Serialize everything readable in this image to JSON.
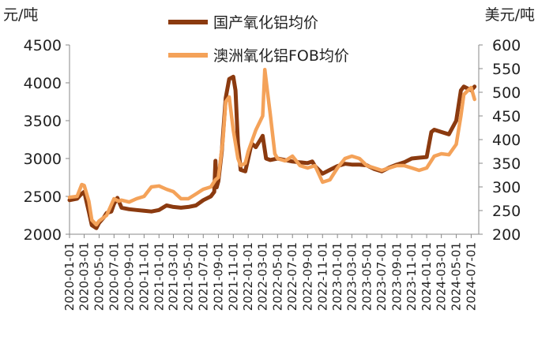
{
  "chart_data": {
    "type": "line",
    "title": "",
    "legend_placement": "top-center",
    "grid": false,
    "left_axis": {
      "unit_label": "元/吨",
      "ylim": [
        2000,
        4500
      ],
      "ticks": [
        "4500",
        "4000",
        "3500",
        "3000",
        "2500",
        "2000"
      ]
    },
    "right_axis": {
      "unit_label": "美元/吨",
      "ylim": [
        200,
        600
      ],
      "ticks": [
        "600",
        "550",
        "500",
        "450",
        "400",
        "350",
        "300",
        "250",
        "200"
      ]
    },
    "x_ticks": [
      "2020-01-01",
      "2020-03-01",
      "2020-05-01",
      "2020-07-01",
      "2020-09-01",
      "2020-11-01",
      "2021-01-01",
      "2021-03-01",
      "2021-05-01",
      "2021-07-01",
      "2021-09-01",
      "2021-11-01",
      "2022-01-01",
      "2022-03-01",
      "2022-05-01",
      "2022-07-01",
      "2022-09-01",
      "2022-11-01",
      "2023-01-01",
      "2023-03-01",
      "2023-05-01",
      "2023-07-01",
      "2023-09-01",
      "2023-11-01",
      "2024-01-01",
      "2024-03-01",
      "2024-05-01",
      "2024-07-01"
    ],
    "series": [
      {
        "name": "国产氧化铝均价",
        "axis": "left",
        "color": "#8B3A0F",
        "points": [
          [
            "2020-01-01",
            2450
          ],
          [
            "2020-02-01",
            2470
          ],
          [
            "2020-02-15",
            2520
          ],
          [
            "2020-03-01",
            2560
          ],
          [
            "2020-03-20",
            2300
          ],
          [
            "2020-04-01",
            2120
          ],
          [
            "2020-04-20",
            2080
          ],
          [
            "2020-05-01",
            2150
          ],
          [
            "2020-05-20",
            2220
          ],
          [
            "2020-06-01",
            2280
          ],
          [
            "2020-06-20",
            2300
          ],
          [
            "2020-07-01",
            2400
          ],
          [
            "2020-07-15",
            2480
          ],
          [
            "2020-08-01",
            2350
          ],
          [
            "2020-09-01",
            2330
          ],
          [
            "2020-10-01",
            2320
          ],
          [
            "2020-11-01",
            2310
          ],
          [
            "2020-12-01",
            2300
          ],
          [
            "2021-01-01",
            2320
          ],
          [
            "2021-02-01",
            2380
          ],
          [
            "2021-03-01",
            2360
          ],
          [
            "2021-04-01",
            2350
          ],
          [
            "2021-05-01",
            2360
          ],
          [
            "2021-06-01",
            2380
          ],
          [
            "2021-07-01",
            2450
          ],
          [
            "2021-08-01",
            2500
          ],
          [
            "2021-08-15",
            2560
          ],
          [
            "2021-08-20",
            2970
          ],
          [
            "2021-08-25",
            2620
          ],
          [
            "2021-09-01",
            2700
          ],
          [
            "2021-09-15",
            3100
          ],
          [
            "2021-10-01",
            3800
          ],
          [
            "2021-10-15",
            4050
          ],
          [
            "2021-11-01",
            4080
          ],
          [
            "2021-11-10",
            3900
          ],
          [
            "2021-11-20",
            3200
          ],
          [
            "2021-12-01",
            2850
          ],
          [
            "2021-12-20",
            2830
          ],
          [
            "2022-01-01",
            3000
          ],
          [
            "2022-01-15",
            3200
          ],
          [
            "2022-02-01",
            3150
          ],
          [
            "2022-02-20",
            3250
          ],
          [
            "2022-03-01",
            3300
          ],
          [
            "2022-03-15",
            3000
          ],
          [
            "2022-04-01",
            2980
          ],
          [
            "2022-05-01",
            3000
          ],
          [
            "2022-06-01",
            2980
          ],
          [
            "2022-07-01",
            2960
          ],
          [
            "2022-08-01",
            2950
          ],
          [
            "2022-09-01",
            2940
          ],
          [
            "2022-09-20",
            2960
          ],
          [
            "2022-10-01",
            2900
          ],
          [
            "2022-11-01",
            2800
          ],
          [
            "2022-12-01",
            2850
          ],
          [
            "2023-01-01",
            2900
          ],
          [
            "2023-02-01",
            2930
          ],
          [
            "2023-03-01",
            2920
          ],
          [
            "2023-04-01",
            2920
          ],
          [
            "2023-05-01",
            2910
          ],
          [
            "2023-06-01",
            2860
          ],
          [
            "2023-07-01",
            2830
          ],
          [
            "2023-08-01",
            2880
          ],
          [
            "2023-09-01",
            2920
          ],
          [
            "2023-10-01",
            2950
          ],
          [
            "2023-11-01",
            3000
          ],
          [
            "2023-12-01",
            3010
          ],
          [
            "2024-01-01",
            3020
          ],
          [
            "2024-01-20",
            3350
          ],
          [
            "2024-02-01",
            3380
          ],
          [
            "2024-03-01",
            3350
          ],
          [
            "2024-04-01",
            3320
          ],
          [
            "2024-05-01",
            3500
          ],
          [
            "2024-05-20",
            3900
          ],
          [
            "2024-06-01",
            3950
          ],
          [
            "2024-06-20",
            3920
          ],
          [
            "2024-07-01",
            3900
          ],
          [
            "2024-07-15",
            3950
          ]
        ]
      },
      {
        "name": "澳洲氧化铝FOB均价",
        "axis": "right",
        "color": "#F4A259",
        "points": [
          [
            "2020-01-01",
            278
          ],
          [
            "2020-02-01",
            280
          ],
          [
            "2020-02-20",
            305
          ],
          [
            "2020-03-01",
            303
          ],
          [
            "2020-03-20",
            270
          ],
          [
            "2020-04-01",
            230
          ],
          [
            "2020-04-20",
            220
          ],
          [
            "2020-05-01",
            228
          ],
          [
            "2020-06-01",
            240
          ],
          [
            "2020-07-01",
            275
          ],
          [
            "2020-07-20",
            270
          ],
          [
            "2020-08-01",
            272
          ],
          [
            "2020-09-01",
            268
          ],
          [
            "2020-10-01",
            275
          ],
          [
            "2020-11-01",
            280
          ],
          [
            "2020-12-01",
            300
          ],
          [
            "2021-01-01",
            302
          ],
          [
            "2021-02-01",
            295
          ],
          [
            "2021-03-01",
            290
          ],
          [
            "2021-04-01",
            275
          ],
          [
            "2021-05-01",
            275
          ],
          [
            "2021-06-01",
            285
          ],
          [
            "2021-07-01",
            295
          ],
          [
            "2021-08-01",
            300
          ],
          [
            "2021-08-20",
            315
          ],
          [
            "2021-09-01",
            320
          ],
          [
            "2021-09-20",
            400
          ],
          [
            "2021-10-01",
            480
          ],
          [
            "2021-10-15",
            490
          ],
          [
            "2021-11-01",
            420
          ],
          [
            "2021-11-20",
            360
          ],
          [
            "2021-12-01",
            345
          ],
          [
            "2021-12-20",
            350
          ],
          [
            "2022-01-01",
            375
          ],
          [
            "2022-02-01",
            420
          ],
          [
            "2022-03-01",
            450
          ],
          [
            "2022-03-10",
            548
          ],
          [
            "2022-03-20",
            505
          ],
          [
            "2022-04-01",
            455
          ],
          [
            "2022-04-20",
            370
          ],
          [
            "2022-05-01",
            360
          ],
          [
            "2022-06-01",
            355
          ],
          [
            "2022-07-01",
            365
          ],
          [
            "2022-08-01",
            345
          ],
          [
            "2022-09-01",
            340
          ],
          [
            "2022-10-01",
            345
          ],
          [
            "2022-11-01",
            310
          ],
          [
            "2022-12-01",
            315
          ],
          [
            "2023-01-01",
            340
          ],
          [
            "2023-02-01",
            360
          ],
          [
            "2023-03-01",
            365
          ],
          [
            "2023-04-01",
            360
          ],
          [
            "2023-05-01",
            345
          ],
          [
            "2023-06-01",
            340
          ],
          [
            "2023-07-01",
            335
          ],
          [
            "2023-08-01",
            340
          ],
          [
            "2023-09-01",
            345
          ],
          [
            "2023-10-01",
            345
          ],
          [
            "2023-11-01",
            340
          ],
          [
            "2023-12-01",
            335
          ],
          [
            "2024-01-01",
            340
          ],
          [
            "2024-02-01",
            365
          ],
          [
            "2024-03-01",
            370
          ],
          [
            "2024-04-01",
            368
          ],
          [
            "2024-05-01",
            390
          ],
          [
            "2024-05-20",
            450
          ],
          [
            "2024-06-01",
            495
          ],
          [
            "2024-06-20",
            505
          ],
          [
            "2024-07-01",
            510
          ],
          [
            "2024-07-15",
            485
          ]
        ]
      }
    ]
  }
}
